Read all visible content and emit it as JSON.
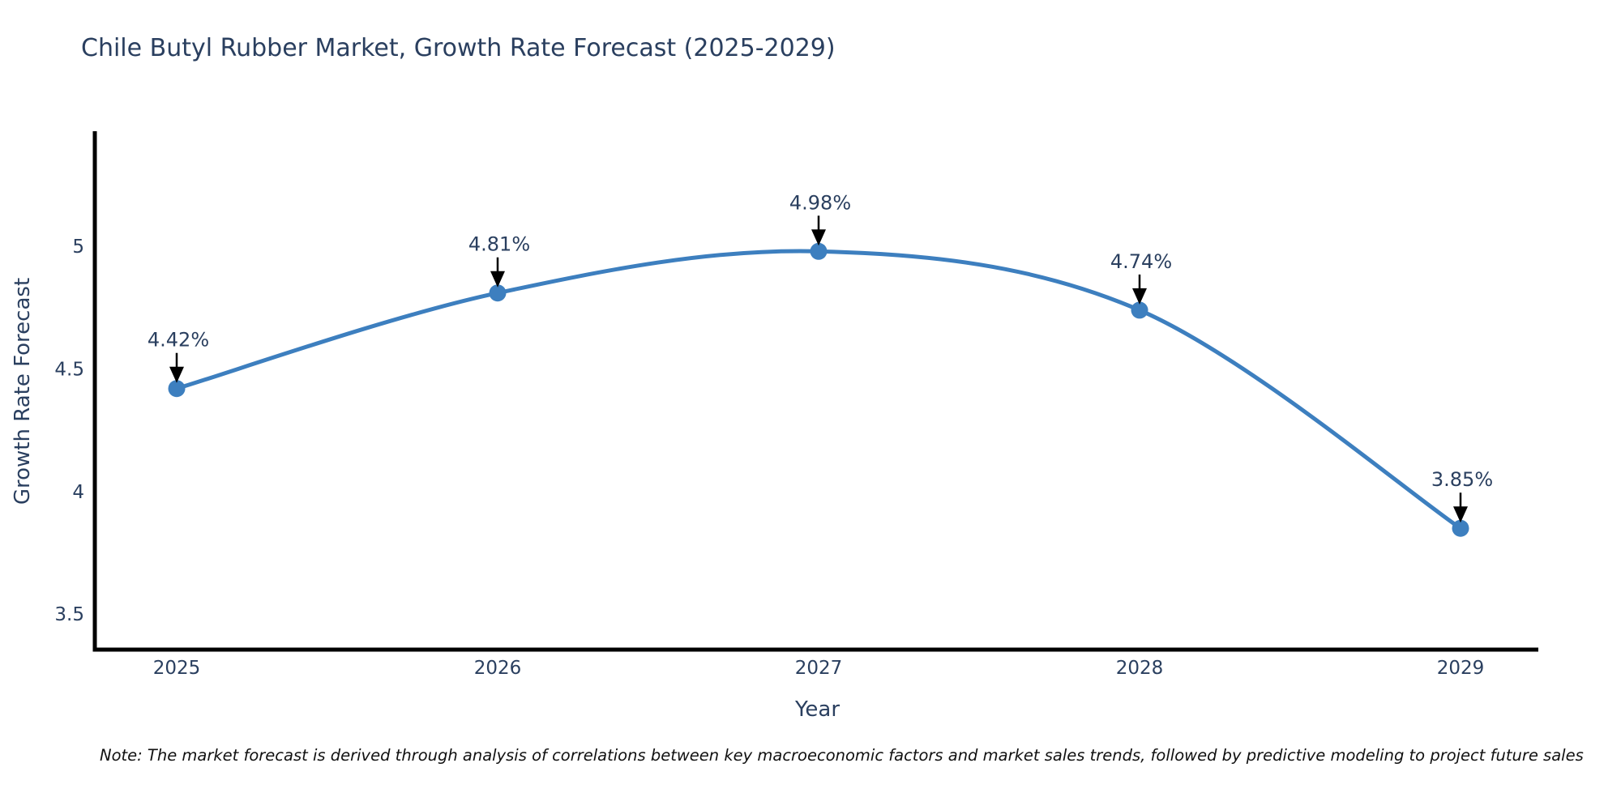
{
  "chart_data": {
    "type": "line",
    "title": "Chile Butyl Rubber Market, Growth Rate Forecast (2025-2029)",
    "xlabel": "Year",
    "ylabel": "Growth Rate Forecast",
    "categories": [
      "2025",
      "2026",
      "2027",
      "2028",
      "2029"
    ],
    "series": [
      {
        "name": "Growth Rate Forecast",
        "values": [
          4.42,
          4.81,
          4.98,
          4.74,
          3.85
        ]
      }
    ],
    "point_labels": [
      "4.42%",
      "4.81%",
      "4.98%",
      "4.74%",
      "3.85%"
    ],
    "y_tick_labels": [
      "3.5",
      "4",
      "4.5",
      "5"
    ],
    "y_ticks": [
      3.5,
      4,
      4.5,
      5
    ],
    "ylim": [
      3.355,
      5.47
    ],
    "line_shape": "spline",
    "grid": false,
    "legend_position": "none",
    "colors": {
      "line": "#3d7fbf",
      "marker": "#3d7fbf",
      "annotation_text": "#2a3f5f",
      "annotation_arrow": "#000000",
      "tick_text": "#2a3f5f",
      "axis_line": "#000000"
    }
  },
  "note": "Note: The market forecast is derived through analysis of correlations between key macroeconomic factors and market sales trends, followed by predictive modeling to project future sales"
}
